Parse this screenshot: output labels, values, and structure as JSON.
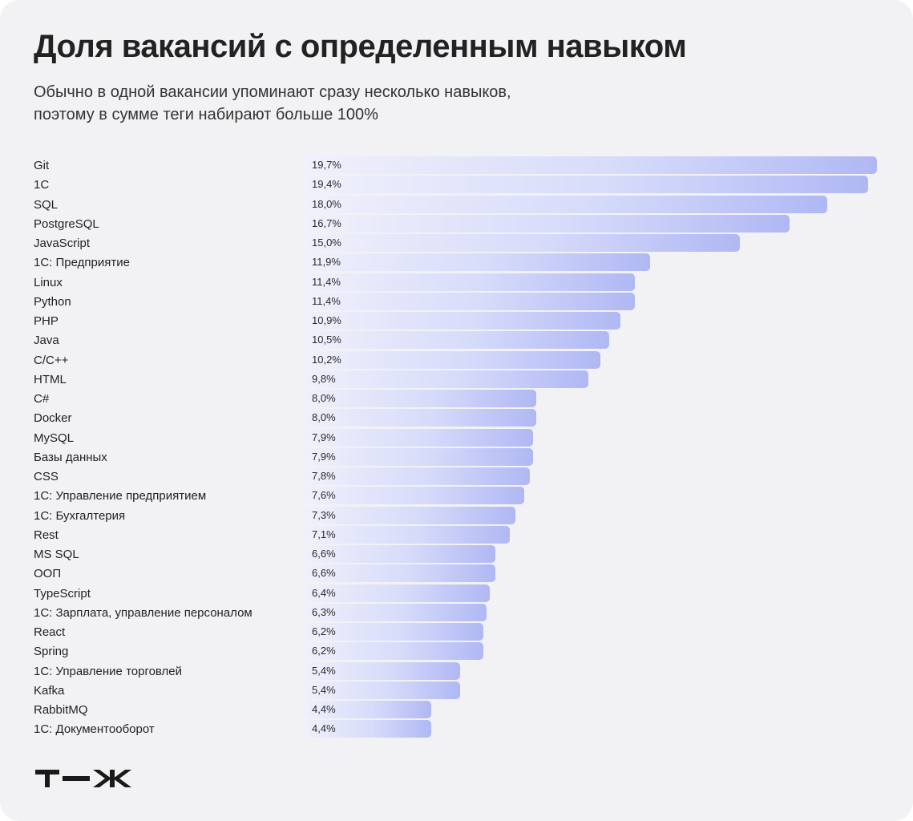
{
  "title": "Доля вакансий с определенным навыком",
  "subtitle_lines": [
    "Обычно в одной вакансии упоминают сразу несколько навыков,",
    "поэтому в сумме теги набирают больше 100%"
  ],
  "logo_text": "т—ж",
  "colors": {
    "background": "#f2f2f4",
    "bar_light": "#f0f1fb",
    "bar_dark": "#b0b8f4",
    "text": "#222222"
  },
  "chart_data": {
    "type": "bar",
    "orientation": "horizontal",
    "title": "Доля вакансий с определенным навыком",
    "xlabel": "",
    "ylabel": "",
    "xlim": [
      0,
      19.7
    ],
    "grid": false,
    "legend": "none",
    "categories": [
      "Git",
      "1C",
      "SQL",
      "PostgreSQL",
      "JavaScript",
      "1C: Предприятие",
      "Linux",
      "Python",
      "PHP",
      "Java",
      "C/C++",
      "HTML",
      "C#",
      "Docker",
      "MySQL",
      "Базы данных",
      "CSS",
      "1C: Управление предприятием",
      "1C: Бухгалтерия",
      "Rest",
      "MS SQL",
      "ООП",
      "TypeScript",
      "1C: Зарплата, управление персоналом",
      "React",
      "Spring",
      "1C: Управление торговлей",
      "Kafka",
      "RabbitMQ",
      "1C: Документооборот"
    ],
    "values": [
      19.7,
      19.4,
      18.0,
      16.7,
      15.0,
      11.9,
      11.4,
      11.4,
      10.9,
      10.5,
      10.2,
      9.8,
      8.0,
      8.0,
      7.9,
      7.9,
      7.8,
      7.6,
      7.3,
      7.1,
      6.6,
      6.6,
      6.4,
      6.3,
      6.2,
      6.2,
      5.4,
      5.4,
      4.4,
      4.4
    ],
    "value_labels": [
      "19,7%",
      "19,4%",
      "18,0%",
      "16,7%",
      "15,0%",
      "11,9%",
      "11,4%",
      "11,4%",
      "10,9%",
      "10,5%",
      "10,2%",
      "9,8%",
      "8,0%",
      "8,0%",
      "7,9%",
      "7,9%",
      "7,8%",
      "7,6%",
      "7,3%",
      "7,1%",
      "6,6%",
      "6,6%",
      "6,4%",
      "6,3%",
      "6,2%",
      "6,2%",
      "5,4%",
      "5,4%",
      "4,4%",
      "4,4%"
    ]
  }
}
